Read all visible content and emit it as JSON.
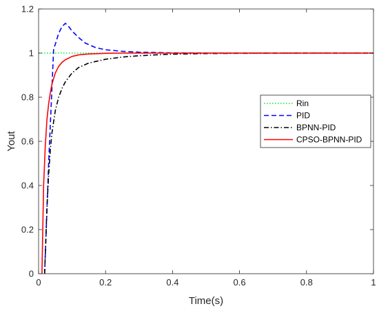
{
  "chart_data": {
    "type": "line",
    "title": "",
    "xlabel": "Time(s)",
    "ylabel": "Yout",
    "xlim": [
      0,
      1
    ],
    "ylim": [
      0,
      1.2
    ],
    "xticks": [
      0,
      0.2,
      0.4,
      0.6,
      0.8,
      1
    ],
    "xtick_labels": [
      "0",
      "0.2",
      "0.4",
      "0.6",
      "0.8",
      "1"
    ],
    "yticks": [
      0,
      0.2,
      0.4,
      0.6,
      0.8,
      1,
      1.2
    ],
    "ytick_labels": [
      "0",
      "0.2",
      "0.4",
      "0.6",
      "0.8",
      "1",
      "1.2"
    ],
    "grid": false,
    "legend_position": "right",
    "series": [
      {
        "name": "Rin",
        "color": "#00e632",
        "style": "dotted",
        "x": [
          0,
          1
        ],
        "y": [
          1,
          1
        ]
      },
      {
        "name": "PID",
        "color": "#0000ff",
        "style": "dashed",
        "x": [
          0.018,
          0.03,
          0.045,
          0.05,
          0.06,
          0.07,
          0.08,
          0.09,
          0.1,
          0.12,
          0.14,
          0.17,
          0.2,
          0.25,
          0.3,
          0.4,
          0.5,
          0.7,
          1.0
        ],
        "y": [
          0,
          0.5,
          1.02,
          1.04,
          1.09,
          1.12,
          1.135,
          1.12,
          1.1,
          1.07,
          1.045,
          1.025,
          1.015,
          1.008,
          1.004,
          1.001,
          1.0,
          1.0,
          1.0
        ]
      },
      {
        "name": "BPNN-PID",
        "color": "#000000",
        "style": "dashdot",
        "x": [
          0.018,
          0.025,
          0.03,
          0.035,
          0.04,
          0.05,
          0.06,
          0.07,
          0.08,
          0.1,
          0.12,
          0.15,
          0.2,
          0.25,
          0.3,
          0.35,
          0.4,
          0.5,
          0.6,
          0.8,
          1.0
        ],
        "y": [
          0,
          0.3,
          0.45,
          0.56,
          0.64,
          0.74,
          0.8,
          0.84,
          0.87,
          0.91,
          0.935,
          0.955,
          0.972,
          0.982,
          0.988,
          0.992,
          0.995,
          0.998,
          0.999,
          1.0,
          1.0
        ]
      },
      {
        "name": "CPSO-BPNN-PID",
        "color": "#ff0000",
        "style": "solid",
        "x": [
          0.01,
          0.015,
          0.02,
          0.025,
          0.03,
          0.035,
          0.04,
          0.05,
          0.06,
          0.07,
          0.08,
          0.1,
          0.12,
          0.15,
          0.2,
          0.25,
          0.3,
          0.4,
          0.6,
          1.0
        ],
        "y": [
          0,
          0.4,
          0.58,
          0.7,
          0.77,
          0.82,
          0.86,
          0.91,
          0.94,
          0.958,
          0.97,
          0.985,
          0.992,
          0.996,
          0.999,
          1.0,
          1.0,
          1.0,
          1.0,
          1.0
        ]
      }
    ]
  }
}
